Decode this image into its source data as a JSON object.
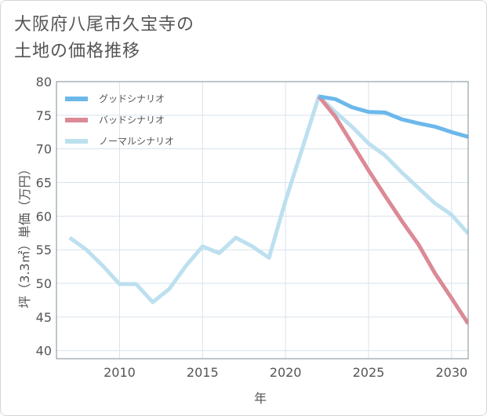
{
  "title_lines": [
    "大阪府八尾市久宝寺の",
    "土地の価格推移"
  ],
  "chart_data": {
    "type": "line",
    "title": "大阪府八尾市久宝寺の土地の価格推移",
    "xlabel": "年",
    "ylabel": "坪（3.3㎡）単価（万円）",
    "xlim": [
      2006.2,
      2031
    ],
    "ylim": [
      38.8,
      80
    ],
    "xticks": [
      2010,
      2015,
      2020,
      2025,
      2030
    ],
    "yticks": [
      40,
      45,
      50,
      55,
      60,
      65,
      70,
      75,
      80
    ],
    "grid": true,
    "legend_position": "top-left",
    "series": [
      {
        "name": "グッドシナリオ",
        "color": "#6cb8eb",
        "x": [
          2022,
          2023,
          2024,
          2025,
          2026,
          2027,
          2028,
          2029,
          2030,
          2031
        ],
        "y": [
          77.8,
          77.4,
          76.2,
          75.5,
          75.4,
          74.4,
          73.8,
          73.3,
          72.5,
          71.8
        ]
      },
      {
        "name": "バッドシナリオ",
        "color": "#db8a96",
        "x": [
          2022,
          2023,
          2024,
          2025,
          2026,
          2027,
          2028,
          2029,
          2030,
          2031
        ],
        "y": [
          77.8,
          74.8,
          70.8,
          66.8,
          63.0,
          59.3,
          55.8,
          51.5,
          47.8,
          44.0
        ]
      },
      {
        "name": "ノーマルシナリオ",
        "color": "#bde0ef",
        "x": [
          2007,
          2008,
          2009,
          2010,
          2011,
          2012,
          2013,
          2014,
          2015,
          2016,
          2017,
          2018,
          2019,
          2020,
          2021,
          2022,
          2023,
          2024,
          2025,
          2026,
          2027,
          2028,
          2029,
          2030,
          2031
        ],
        "y": [
          56.8,
          55.0,
          52.6,
          49.9,
          49.9,
          47.2,
          49.2,
          52.6,
          55.5,
          54.5,
          56.8,
          55.5,
          53.8,
          62.3,
          70.0,
          77.8,
          75.5,
          73.3,
          70.8,
          69.0,
          66.5,
          64.2,
          61.9,
          60.2,
          57.4
        ]
      }
    ]
  }
}
